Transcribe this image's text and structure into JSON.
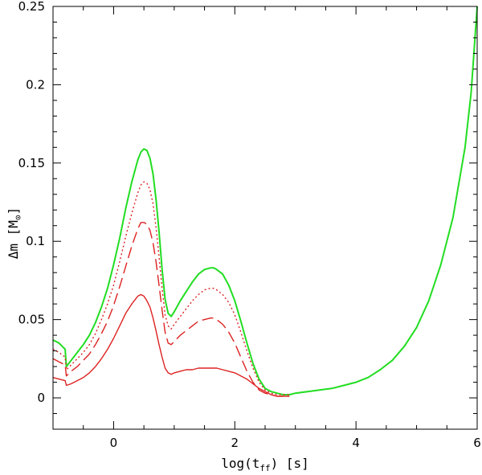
{
  "chart_data": {
    "type": "line",
    "xlabel": "log(t_ff) [s]",
    "xlabel_parts": {
      "main": "log(t",
      "sub": "ff",
      "tail": ") [s]"
    },
    "ylabel": "Δm [M⊙]",
    "ylabel_parts": {
      "main": "Δm [M",
      "sub": "⊙",
      "tail": "]"
    },
    "xlim": [
      -1,
      6
    ],
    "ylim": [
      -0.02,
      0.25
    ],
    "xticks": [
      0,
      2,
      4,
      6
    ],
    "xtick_labels": [
      "0",
      "2",
      "4",
      "6"
    ],
    "yticks": [
      0,
      0.05,
      0.1,
      0.15,
      0.2,
      0.25
    ],
    "ytick_labels": [
      "0",
      "0.05",
      "0.1",
      "0.15",
      "0.2",
      "0.25"
    ],
    "grid": false,
    "colors": {
      "green": "#22dd22",
      "red": "#dd2222"
    },
    "series": [
      {
        "color": "#22dd22",
        "style": "solid",
        "x": [
          -1.0,
          -0.9,
          -0.8,
          -0.78,
          -0.7,
          -0.6,
          -0.5,
          -0.4,
          -0.3,
          -0.2,
          -0.1,
          0.0,
          0.1,
          0.2,
          0.3,
          0.4,
          0.45,
          0.5,
          0.55,
          0.6,
          0.65,
          0.7,
          0.75,
          0.8,
          0.85,
          0.9,
          0.95,
          1.0,
          1.1,
          1.2,
          1.3,
          1.4,
          1.5,
          1.6,
          1.65,
          1.7,
          1.8,
          1.9,
          2.0,
          2.1,
          2.2,
          2.3,
          2.4,
          2.5,
          2.6,
          2.7,
          2.8,
          2.9,
          3.0,
          3.2,
          3.4,
          3.6,
          3.8,
          4.0,
          4.2,
          4.4,
          4.6,
          4.8,
          5.0,
          5.2,
          5.4,
          5.6,
          5.8,
          5.9,
          6.0
        ],
        "y": [
          0.037,
          0.035,
          0.031,
          0.02,
          0.024,
          0.029,
          0.034,
          0.04,
          0.048,
          0.058,
          0.07,
          0.085,
          0.102,
          0.121,
          0.138,
          0.152,
          0.157,
          0.159,
          0.158,
          0.153,
          0.143,
          0.127,
          0.106,
          0.082,
          0.063,
          0.054,
          0.052,
          0.055,
          0.062,
          0.068,
          0.074,
          0.079,
          0.082,
          0.083,
          0.083,
          0.082,
          0.079,
          0.072,
          0.062,
          0.049,
          0.035,
          0.022,
          0.012,
          0.006,
          0.004,
          0.003,
          0.002,
          0.002,
          0.003,
          0.004,
          0.005,
          0.006,
          0.008,
          0.01,
          0.013,
          0.018,
          0.024,
          0.033,
          0.045,
          0.062,
          0.085,
          0.115,
          0.16,
          0.195,
          0.25
        ]
      },
      {
        "color": "#dd2222",
        "style": "dotted",
        "x": [
          -1.0,
          -0.9,
          -0.8,
          -0.78,
          -0.7,
          -0.6,
          -0.5,
          -0.4,
          -0.3,
          -0.2,
          -0.1,
          0.0,
          0.1,
          0.2,
          0.3,
          0.4,
          0.45,
          0.5,
          0.55,
          0.6,
          0.65,
          0.7,
          0.75,
          0.8,
          0.85,
          0.9,
          0.95,
          1.0,
          1.1,
          1.2,
          1.3,
          1.4,
          1.5,
          1.6,
          1.65,
          1.7,
          1.8,
          1.9,
          2.0,
          2.1,
          2.2,
          2.3,
          2.4,
          2.5,
          2.6,
          2.7,
          2.8,
          2.9
        ],
        "y": [
          0.031,
          0.029,
          0.026,
          0.018,
          0.021,
          0.025,
          0.029,
          0.034,
          0.041,
          0.05,
          0.06,
          0.072,
          0.087,
          0.103,
          0.118,
          0.131,
          0.136,
          0.138,
          0.137,
          0.133,
          0.124,
          0.109,
          0.09,
          0.07,
          0.053,
          0.046,
          0.044,
          0.047,
          0.052,
          0.057,
          0.062,
          0.066,
          0.069,
          0.07,
          0.07,
          0.069,
          0.066,
          0.061,
          0.053,
          0.042,
          0.03,
          0.019,
          0.01,
          0.005,
          0.003,
          0.002,
          0.002,
          0.002
        ]
      },
      {
        "color": "#dd2222",
        "style": "dashed",
        "x": [
          -1.0,
          -0.9,
          -0.8,
          -0.78,
          -0.7,
          -0.6,
          -0.5,
          -0.4,
          -0.3,
          -0.2,
          -0.1,
          0.0,
          0.1,
          0.2,
          0.3,
          0.4,
          0.45,
          0.5,
          0.55,
          0.6,
          0.65,
          0.7,
          0.75,
          0.8,
          0.85,
          0.9,
          0.95,
          1.0,
          1.1,
          1.2,
          1.3,
          1.4,
          1.5,
          1.6,
          1.65,
          1.7,
          1.8,
          1.9,
          2.0,
          2.1,
          2.2,
          2.3,
          2.4,
          2.5,
          2.6,
          2.7,
          2.8,
          2.9
        ],
        "y": [
          0.025,
          0.023,
          0.021,
          0.014,
          0.017,
          0.02,
          0.024,
          0.028,
          0.034,
          0.041,
          0.049,
          0.059,
          0.071,
          0.084,
          0.097,
          0.108,
          0.112,
          0.112,
          0.111,
          0.107,
          0.099,
          0.087,
          0.072,
          0.056,
          0.042,
          0.035,
          0.034,
          0.036,
          0.04,
          0.043,
          0.046,
          0.049,
          0.05,
          0.051,
          0.051,
          0.05,
          0.047,
          0.042,
          0.035,
          0.026,
          0.017,
          0.01,
          0.005,
          0.003,
          0.002,
          0.001,
          0.001,
          0.001
        ]
      },
      {
        "color": "#dd2222",
        "style": "solid",
        "x": [
          -1.0,
          -0.9,
          -0.8,
          -0.78,
          -0.7,
          -0.6,
          -0.5,
          -0.4,
          -0.3,
          -0.2,
          -0.1,
          0.0,
          0.1,
          0.2,
          0.3,
          0.4,
          0.45,
          0.5,
          0.55,
          0.6,
          0.65,
          0.7,
          0.75,
          0.8,
          0.85,
          0.9,
          0.95,
          1.0,
          1.1,
          1.2,
          1.3,
          1.4,
          1.5,
          1.6,
          1.7,
          1.8,
          1.9,
          2.0,
          2.1,
          2.2,
          2.3,
          2.4,
          2.5,
          2.6,
          2.7,
          2.8,
          2.9
        ],
        "y": [
          0.013,
          0.012,
          0.011,
          0.008,
          0.009,
          0.011,
          0.013,
          0.016,
          0.02,
          0.025,
          0.031,
          0.038,
          0.046,
          0.054,
          0.06,
          0.065,
          0.066,
          0.065,
          0.062,
          0.058,
          0.051,
          0.043,
          0.034,
          0.026,
          0.019,
          0.016,
          0.015,
          0.016,
          0.017,
          0.018,
          0.018,
          0.019,
          0.019,
          0.019,
          0.019,
          0.018,
          0.017,
          0.016,
          0.014,
          0.012,
          0.009,
          0.006,
          0.004,
          0.002,
          0.001,
          0.001,
          0.001
        ]
      }
    ]
  }
}
